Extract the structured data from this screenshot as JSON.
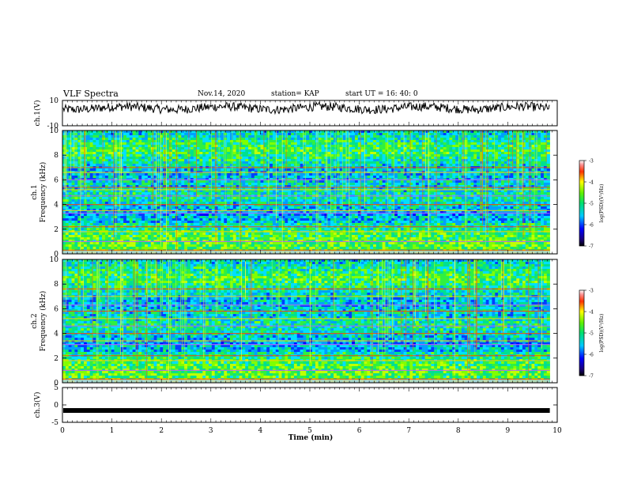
{
  "header": {
    "title": "VLF  Spectra",
    "date": "Nov.14,  2020",
    "station": "station= KAP",
    "start": "start  UT =   16: 40: 0"
  },
  "chart_data": [
    {
      "type": "line",
      "panel": "ch1-waveform",
      "ylabel": "ch.1(V)",
      "ylim": [
        -10,
        10
      ],
      "yticks": [
        10,
        -10
      ],
      "xlim": [
        0,
        10
      ],
      "approx_level": 4,
      "approx_amplitude": 3.5
    },
    {
      "type": "heatmap",
      "panel": "ch1-spectrogram",
      "ylabel_top": "ch.1",
      "ylabel": "Frequency  (kHz)",
      "ylim": [
        0,
        10
      ],
      "yticks": [
        0,
        2,
        4,
        6,
        8,
        10
      ],
      "xlim": [
        0,
        9.85
      ],
      "colorbar": {
        "label": "log(PSD)(V²/Hz)",
        "range": [
          -7,
          -3
        ],
        "ticks": [
          -3,
          -4,
          -5,
          -6,
          -7
        ]
      },
      "lines_khz": [
        0.3,
        1.0,
        1.8,
        2.2,
        3.3,
        3.5,
        4.0,
        4.7,
        5.2,
        5.4,
        6.0,
        6.6,
        7.0
      ]
    },
    {
      "type": "heatmap",
      "panel": "ch2-spectrogram",
      "ylabel_top": "ch.2",
      "ylabel": "Frequency  (kHz)",
      "ylim": [
        0,
        10
      ],
      "yticks": [
        0,
        2,
        4,
        6,
        8,
        10
      ],
      "xlim": [
        0,
        9.85
      ],
      "colorbar": {
        "label": "log(PSD)(V²/Hz)",
        "range": [
          -7,
          -3
        ],
        "ticks": [
          -3,
          -4,
          -5,
          -6,
          -7
        ]
      },
      "lines_khz": [
        0.3,
        1.0,
        1.8,
        2.2,
        3.1,
        3.4,
        4.0,
        4.6,
        5.2,
        5.8,
        6.3,
        7.0,
        7.6
      ]
    },
    {
      "type": "line",
      "panel": "ch3-waveform",
      "ylabel": "ch.3(V)",
      "ylim": [
        -5,
        5
      ],
      "yticks": [
        5,
        0,
        -5
      ],
      "xlim": [
        0,
        10
      ],
      "approx_level": -1.6
    }
  ],
  "xaxis": {
    "label": "Time  (min)",
    "ticks": [
      0,
      1,
      2,
      3,
      4,
      5,
      6,
      7,
      8,
      9,
      10
    ]
  }
}
